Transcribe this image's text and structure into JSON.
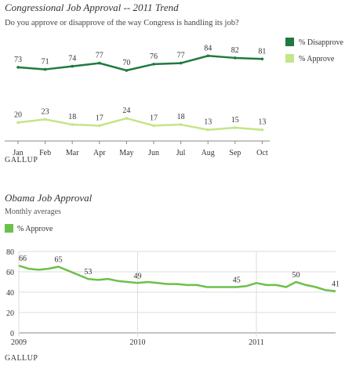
{
  "colors": {
    "disapprove": "#1f7a3f",
    "approve_light": "#c4e588",
    "obama_line": "#6cc04a",
    "axis": "#888888",
    "grid": "#dddddd",
    "text": "#333333"
  },
  "chart1": {
    "title": "Congressional Job Approval -- 2011 Trend",
    "subtitle": "Do you approve or disapprove of the way Congress is handling its job?",
    "legend": [
      "% Disapprove",
      "% Approve"
    ],
    "brand": "GALLUP"
  },
  "chart2": {
    "title": "Obama Job Approval",
    "subtitle": "Monthly averages",
    "legend": [
      "% Approve"
    ],
    "brand": "GALLUP"
  },
  "chart_data": [
    {
      "type": "line",
      "title": "Congressional Job Approval -- 2011 Trend",
      "subtitle": "Do you approve or disapprove of the way Congress is handling its job?",
      "x": [
        "Jan",
        "Feb",
        "Mar",
        "Apr",
        "May",
        "Jun",
        "Jul",
        "Aug",
        "Sep",
        "Oct"
      ],
      "ylim": [
        0,
        100
      ],
      "grid": false,
      "legend_position": "right",
      "series": [
        {
          "name": "% Disapprove",
          "color": "#1f7a3f",
          "values": [
            73,
            71,
            74,
            77,
            70,
            76,
            77,
            84,
            82,
            81
          ]
        },
        {
          "name": "% Approve",
          "color": "#c4e588",
          "values": [
            20,
            23,
            18,
            17,
            24,
            17,
            18,
            13,
            15,
            13
          ]
        }
      ],
      "data_labels": true
    },
    {
      "type": "line",
      "title": "Obama Job Approval",
      "subtitle": "Monthly averages",
      "x_ticks": [
        "2009",
        "2010",
        "2011"
      ],
      "y_ticks": [
        0,
        20,
        40,
        60,
        80
      ],
      "ylim": [
        0,
        80
      ],
      "grid": true,
      "legend_position": "top-left",
      "series": [
        {
          "name": "% Approve",
          "color": "#6cc04a",
          "values": [
            66,
            63,
            62,
            63,
            65,
            61,
            57,
            53,
            52,
            53,
            51,
            50,
            49,
            50,
            49,
            48,
            48,
            47,
            47,
            45,
            45,
            45,
            45,
            46,
            49,
            47,
            47,
            45,
            50,
            47,
            45,
            42,
            41
          ]
        }
      ],
      "annotations": [
        {
          "index": 0,
          "value": 66
        },
        {
          "index": 4,
          "value": 65
        },
        {
          "index": 7,
          "value": 53
        },
        {
          "index": 12,
          "value": 49
        },
        {
          "index": 22,
          "value": 45
        },
        {
          "index": 28,
          "value": 50
        },
        {
          "index": 32,
          "value": 41
        }
      ]
    }
  ]
}
